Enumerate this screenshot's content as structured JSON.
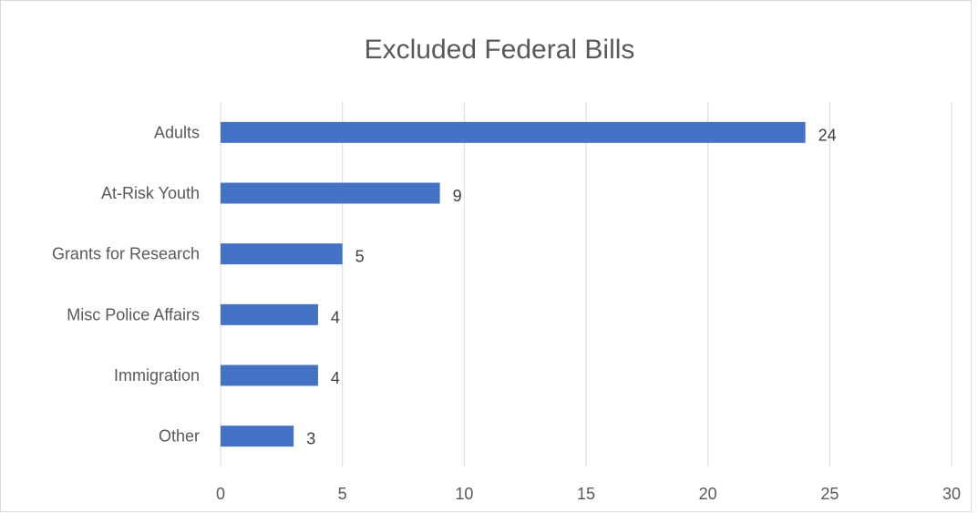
{
  "chart_data": {
    "type": "bar",
    "orientation": "horizontal",
    "title": "Excluded Federal Bills",
    "categories": [
      "Adults",
      "At-Risk Youth",
      "Grants for Research",
      "Misc Police Affairs",
      "Immigration",
      "Other"
    ],
    "values": [
      24,
      9,
      5,
      4,
      4,
      3
    ],
    "data_labels": [
      "24",
      "9",
      "5",
      "4",
      "4",
      "3"
    ],
    "xlim": [
      0,
      30
    ],
    "x_ticks": [
      0,
      5,
      10,
      15,
      20,
      25,
      30
    ],
    "x_tick_labels": [
      "0",
      "5",
      "10",
      "15",
      "20",
      "25",
      "30"
    ],
    "grid": "vertical",
    "legend": "none",
    "bar_color": "#4472C4"
  }
}
